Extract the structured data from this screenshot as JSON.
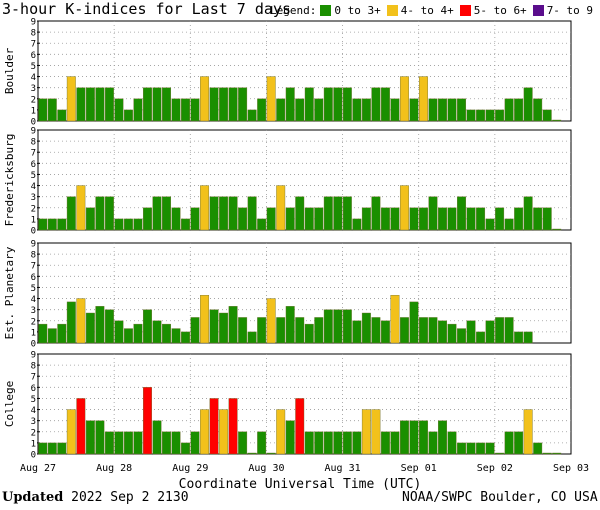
{
  "title": "3-hour K-indices for Last 7 days",
  "legend": {
    "label": "Legend:",
    "items": [
      {
        "label": "0 to 3+",
        "color": "#1a8f00"
      },
      {
        "label": "4- to 4+",
        "color": "#f2c11b"
      },
      {
        "label": "5- to 6+",
        "color": "#ff0000"
      },
      {
        "label": "7- to 9",
        "color": "#5a0d8c"
      }
    ]
  },
  "footer": {
    "updated_label": "Updated",
    "updated_value": "2022 Sep  2 2130",
    "credit": "NOAA/SWPC Boulder, CO USA"
  },
  "chart_data": {
    "type": "bar",
    "xlabel": "Coordinate Universal Time (UTC)",
    "x_tick_labels": [
      "Aug 27",
      "Aug 28",
      "Aug 29",
      "Aug 30",
      "Aug 31",
      "Sep 01",
      "Sep 02",
      "Sep 03"
    ],
    "ylim": [
      0,
      9
    ],
    "y_ticks": [
      "0",
      "1",
      "2",
      "3",
      "4",
      "5",
      "6",
      "7",
      "8",
      "9"
    ],
    "bins_per_day": 8,
    "panels": [
      {
        "name": "Boulder",
        "values": [
          2,
          2,
          1,
          4,
          3,
          3,
          3,
          3,
          2,
          1,
          2,
          3,
          3,
          3,
          2,
          2,
          2,
          4,
          3,
          3,
          3,
          3,
          1,
          2,
          4,
          2,
          3,
          2,
          3,
          2,
          3,
          3,
          3,
          2,
          2,
          3,
          3,
          2,
          4,
          2,
          4,
          2,
          2,
          2,
          2,
          1,
          1,
          1,
          1,
          2,
          2,
          3,
          2,
          1,
          0
        ]
      },
      {
        "name": "Fredericksburg",
        "values": [
          1,
          1,
          1,
          3,
          4,
          2,
          3,
          3,
          1,
          1,
          1,
          2,
          3,
          3,
          2,
          1,
          2,
          4,
          3,
          3,
          3,
          2,
          3,
          1,
          2,
          4,
          2,
          3,
          2,
          2,
          3,
          3,
          3,
          1,
          2,
          3,
          2,
          2,
          4,
          2,
          2,
          3,
          2,
          2,
          3,
          2,
          2,
          1,
          2,
          1,
          2,
          3,
          2,
          2,
          0
        ]
      },
      {
        "name": "Est. Planetary",
        "values": [
          1.7,
          1.3,
          1.7,
          3.7,
          4,
          2.7,
          3.3,
          3,
          2,
          1.3,
          1.7,
          3,
          2,
          1.7,
          1.3,
          1,
          2.3,
          4.3,
          3,
          2.7,
          3.3,
          2.3,
          1,
          2.3,
          4,
          2.3,
          3.3,
          2.3,
          1.7,
          2.3,
          3,
          3,
          3,
          2,
          2.7,
          2.3,
          2,
          4.3,
          2.3,
          3.7,
          2.3,
          2.3,
          2,
          1.7,
          1.3,
          2,
          1,
          2,
          2.3,
          2.3,
          1,
          1,
          null,
          null,
          null
        ]
      },
      {
        "name": "College",
        "values": [
          1,
          1,
          1,
          4,
          5,
          3,
          3,
          2,
          2,
          2,
          2,
          6,
          3,
          2,
          2,
          1,
          2,
          4,
          5,
          4,
          5,
          2,
          0,
          2,
          0,
          4,
          3,
          5,
          2,
          2,
          2,
          2,
          2,
          2,
          4,
          4,
          2,
          2,
          3,
          3,
          3,
          2,
          3,
          2,
          1,
          1,
          1,
          1,
          0,
          2,
          2,
          4,
          1,
          0,
          0
        ]
      }
    ],
    "color_thresholds": {
      "green_max": 3.9,
      "yellow_max": 4.9,
      "red_max": 6.9
    }
  }
}
